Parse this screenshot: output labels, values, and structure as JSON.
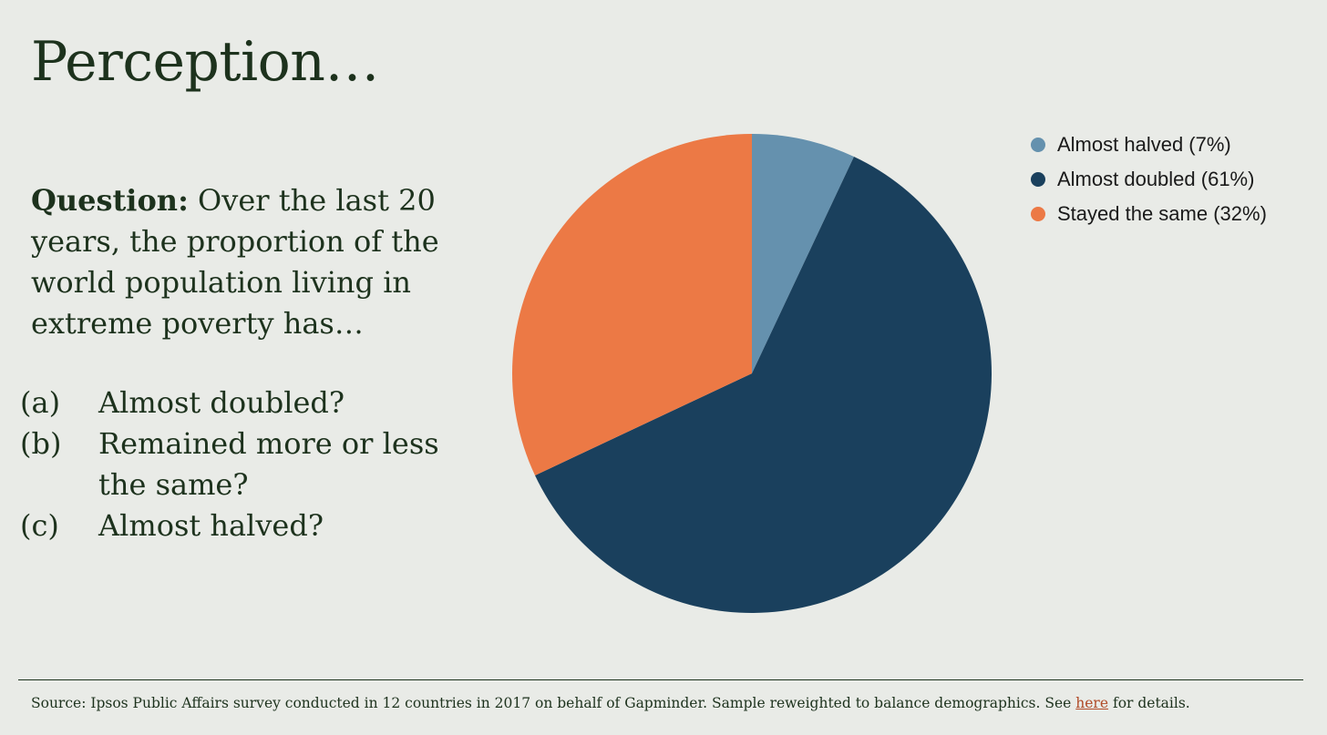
{
  "slide": {
    "title": "Perception…",
    "question_label": "Question:",
    "question_text": "Over the last 20 years, the proportion of the world population living in extreme poverty has…",
    "options": [
      {
        "letter": "(a)",
        "text": "Almost doubled?"
      },
      {
        "letter": "(b)",
        "text": "Remained more or less the same?"
      },
      {
        "letter": "(c)",
        "text": "Almost halved?"
      }
    ],
    "source_prefix": "Source: Ipsos Public Affairs survey conducted in 12 countries in 2017 on behalf of Gapminder. Sample reweighted to balance demographics. See",
    "source_link_text": "here",
    "source_suffix": "for details."
  },
  "chart_data": {
    "type": "pie",
    "title": "",
    "start_angle_deg": 0,
    "direction": "clockwise",
    "legend_position": "top-right",
    "slices": [
      {
        "label": "Almost halved (7%)",
        "value": 7,
        "color": "#6591ae"
      },
      {
        "label": "Almost doubled (61%)",
        "value": 61,
        "color": "#1a405d"
      },
      {
        "label": "Stayed the same (32%)",
        "value": 32,
        "color": "#ec7945"
      }
    ]
  }
}
